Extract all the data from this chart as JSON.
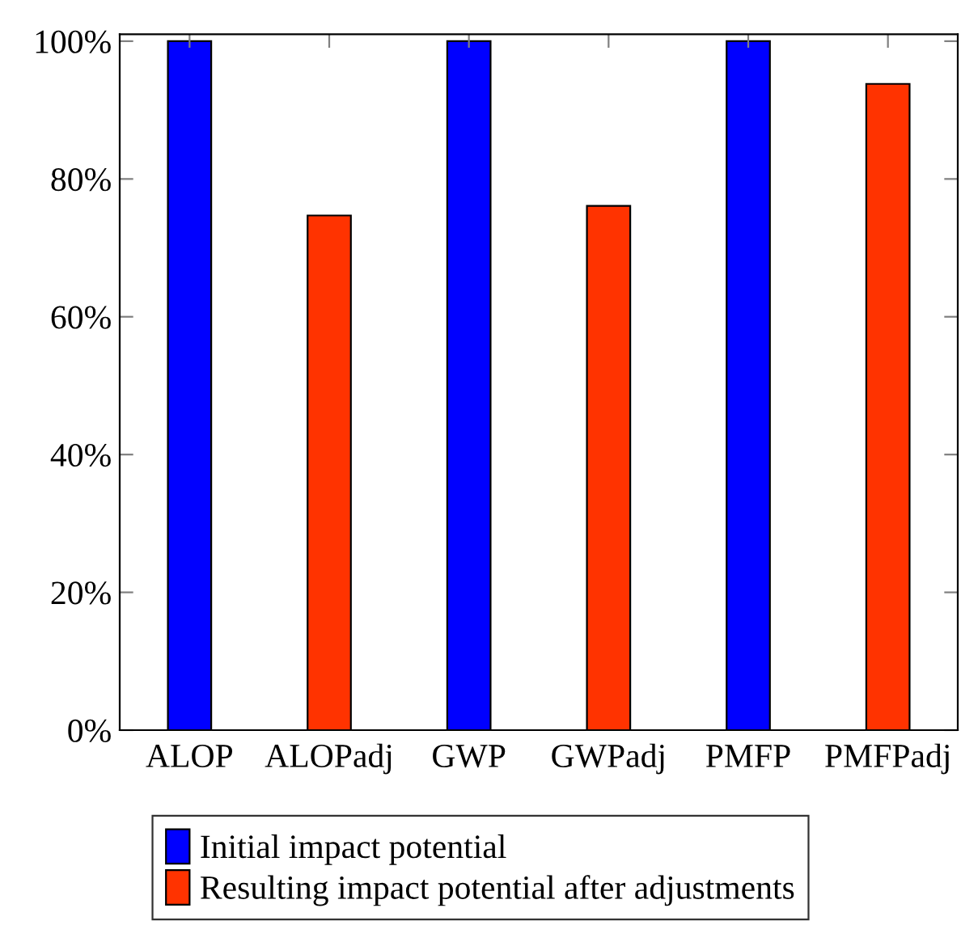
{
  "chart_data": {
    "type": "bar",
    "categories": [
      "ALOP",
      "ALOPadj",
      "GWP",
      "GWPadj",
      "PMFP",
      "PMFPadj"
    ],
    "series": [
      {
        "name": "Initial impact potential",
        "color": "#0000ff",
        "values": [
          100,
          null,
          100,
          null,
          100,
          null
        ]
      },
      {
        "name": "Resulting impact potential after adjustments",
        "color": "#ff3300",
        "values": [
          null,
          74.7,
          null,
          76.1,
          null,
          93.8
        ]
      }
    ],
    "ylim": [
      0,
      101
    ],
    "yticks": [
      {
        "value": 0,
        "label": "0%"
      },
      {
        "value": 20,
        "label": "20%"
      },
      {
        "value": 40,
        "label": "40%"
      },
      {
        "value": 60,
        "label": "60%"
      },
      {
        "value": 80,
        "label": "80%"
      },
      {
        "value": 100,
        "label": "100%"
      }
    ],
    "grid": false,
    "legend": "bottom"
  }
}
